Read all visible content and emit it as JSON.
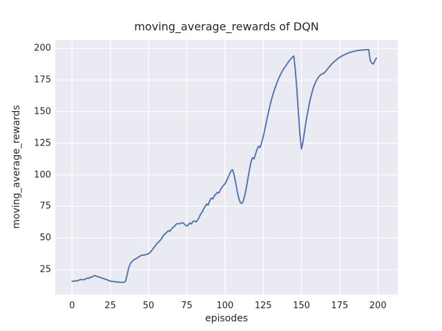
{
  "colors": {
    "figure_bg": "#ffffff",
    "axes_bg": "#eaeaf2",
    "grid": "#ffffff",
    "line": "#4c72b0",
    "text": "#262626"
  },
  "chart_data": {
    "type": "line",
    "title": "moving_average_rewards of DQN",
    "xlabel": "episodes",
    "ylabel": "moving_average_rewards",
    "grid": true,
    "legend": false,
    "x_ticks": [
      0,
      25,
      50,
      75,
      100,
      125,
      150,
      175,
      200
    ],
    "y_ticks": [
      25,
      50,
      75,
      100,
      125,
      150,
      175,
      200
    ],
    "xlim": [
      -11,
      213
    ],
    "ylim": [
      5.4,
      206.6
    ],
    "x_start": 0,
    "x_step": 1,
    "y": [
      15.7,
      15.9,
      16.2,
      16.0,
      16.5,
      16.9,
      17.3,
      17.0,
      17.2,
      17.8,
      18.3,
      18.1,
      19.2,
      19.0,
      20.1,
      20.4,
      19.8,
      19.4,
      19.0,
      18.6,
      18.2,
      17.8,
      17.4,
      16.9,
      16.4,
      16.0,
      15.8,
      15.6,
      15.4,
      15.3,
      15.2,
      15.1,
      15.0,
      14.9,
      15.0,
      16.0,
      21.0,
      26.5,
      29.5,
      31.2,
      32.3,
      33.2,
      33.9,
      34.6,
      35.4,
      36.1,
      36.7,
      36.3,
      36.9,
      37.2,
      37.7,
      38.6,
      40.0,
      41.6,
      43.2,
      44.9,
      46.3,
      47.4,
      48.7,
      50.5,
      52.4,
      53.5,
      54.7,
      55.9,
      55.3,
      57.3,
      58.4,
      59.4,
      60.9,
      61.5,
      61.1,
      61.7,
      62.1,
      61.5,
      60.4,
      59.5,
      60.3,
      61.9,
      61.1,
      63.1,
      63.6,
      62.7,
      64.1,
      66.1,
      68.9,
      70.4,
      72.9,
      74.9,
      76.9,
      76.1,
      79.3,
      81.6,
      80.9,
      83.3,
      84.6,
      86.1,
      85.6,
      88.1,
      90.1,
      91.6,
      92.9,
      95.1,
      97.9,
      100.6,
      103.3,
      103.9,
      99.6,
      93.6,
      87.1,
      81.6,
      78.1,
      77.3,
      79.6,
      84.1,
      90.1,
      97.1,
      104.1,
      110.1,
      113.6,
      112.6,
      116.6,
      120.1,
      122.6,
      121.6,
      125.6,
      130.1,
      135.6,
      141.6,
      147.1,
      152.6,
      157.6,
      162.1,
      166.1,
      169.6,
      172.9,
      175.9,
      178.5,
      180.9,
      183.0,
      184.9,
      186.6,
      188.4,
      190.1,
      191.6,
      192.9,
      193.9,
      183.0,
      167.0,
      149.0,
      132.0,
      120.5,
      126.0,
      134.0,
      142.0,
      149.0,
      155.5,
      161.0,
      165.5,
      169.5,
      172.5,
      175.0,
      177.0,
      178.5,
      179.5,
      180.1,
      180.6,
      182.1,
      183.6,
      185.1,
      186.6,
      187.9,
      189.1,
      190.1,
      191.1,
      192.1,
      192.9,
      193.6,
      194.3,
      194.9,
      195.5,
      196.0,
      196.5,
      196.9,
      197.3,
      197.6,
      197.9,
      198.1,
      198.3,
      198.5,
      198.6,
      198.7,
      198.8,
      198.9,
      199.0,
      199.1,
      190.3,
      188.2,
      187.6,
      190.2,
      192.3
    ]
  }
}
